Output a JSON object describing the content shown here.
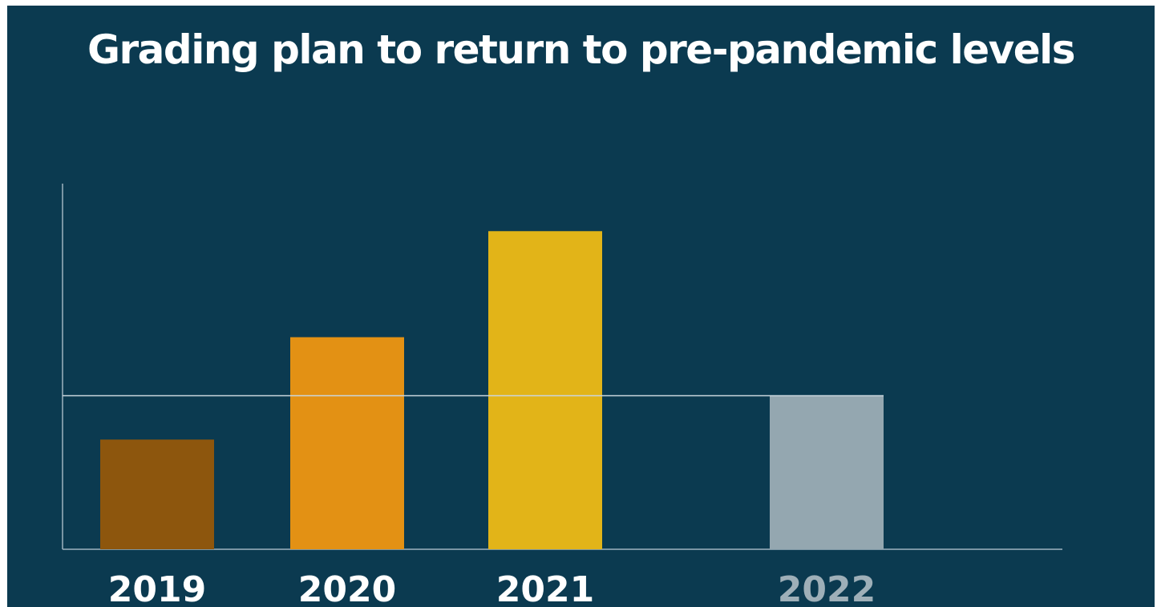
{
  "title": "Grading plan to return to pre-pandemic levels",
  "colors": {
    "background": "#0b3a50",
    "title": "#ffffff",
    "axis": "#9fb3bf",
    "reference_line": "#c9d6dd",
    "label_default": "#ffffff",
    "label_future": "#9eafb8"
  },
  "chart_data": {
    "type": "bar",
    "title": "Grading plan to return to pre-pandemic levels",
    "xlabel": "",
    "ylabel": "",
    "categories": [
      "2019",
      "2020",
      "2021",
      "2022"
    ],
    "values": [
      30,
      58,
      87,
      42
    ],
    "ylim": [
      0,
      100
    ],
    "bar_colors": [
      "#8d560d",
      "#e39114",
      "#e2b418",
      "#94a7b0"
    ],
    "label_colors": [
      "#ffffff",
      "#ffffff",
      "#ffffff",
      "#9eafb8"
    ],
    "reference_value": 42,
    "grid": false,
    "legend": "none"
  }
}
